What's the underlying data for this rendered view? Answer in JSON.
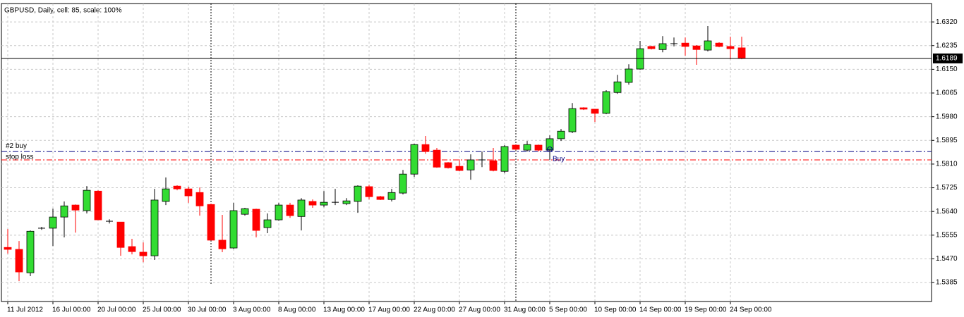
{
  "chart_data": {
    "type": "candlestick",
    "title": "GBPUSD, Daily, cell: 85, scale: 100%",
    "categories": [
      "11 Jul 2012",
      null,
      null,
      null,
      "16 Jul 00:00",
      null,
      null,
      null,
      "20 Jul 00:00",
      null,
      null,
      null,
      "25 Jul 00:00",
      null,
      null,
      null,
      "30 Jul 00:00",
      null,
      null,
      null,
      "3 Aug 00:00",
      null,
      null,
      null,
      "8 Aug 00:00",
      null,
      null,
      null,
      "13 Aug 00:00",
      null,
      null,
      null,
      "17 Aug 00:00",
      null,
      null,
      null,
      "22 Aug 00:00",
      null,
      null,
      null,
      "27 Aug 00:00",
      null,
      null,
      null,
      "31 Aug 00:00",
      null,
      null,
      null,
      "5 Sep 00:00",
      null,
      null,
      null,
      "10 Sep 00:00",
      null,
      null,
      null,
      "14 Sep 00:00",
      null,
      null,
      null,
      "19 Sep 00:00",
      null,
      null,
      null,
      "24 Sep 00:00",
      null
    ],
    "open": [
      1.5511,
      1.5504,
      1.542,
      1.558,
      1.558,
      1.562,
      1.5663,
      1.5643,
      1.5713,
      1.5605,
      1.5602,
      1.5514,
      1.5494,
      1.5481,
      1.5676,
      1.5731,
      1.5721,
      1.5708,
      1.5665,
      1.5537,
      1.5509,
      1.563,
      1.5648,
      1.5582,
      1.561,
      1.5663,
      1.5622,
      1.5676,
      1.5663,
      1.5673,
      1.5668,
      1.5676,
      1.5729,
      1.5693,
      1.5683,
      1.5706,
      1.5774,
      1.588,
      1.586,
      1.5815,
      1.5802,
      1.5789,
      1.5825,
      1.5822,
      1.5784,
      1.5878,
      1.586,
      1.5878,
      1.586,
      1.5901,
      1.5926,
      1.6012,
      1.6007,
      1.5992,
      1.6067,
      1.6103,
      1.6151,
      1.6232,
      1.6221,
      1.6242,
      1.6244,
      1.6234,
      1.6219,
      1.6244,
      1.6232,
      1.6227
    ],
    "high": [
      1.5577,
      1.5534,
      1.5572,
      1.5585,
      1.565,
      1.5676,
      1.5665,
      1.5731,
      1.5716,
      1.5612,
      1.5602,
      1.5542,
      1.5529,
      1.5721,
      1.5762,
      1.5734,
      1.5729,
      1.5726,
      1.5668,
      1.5628,
      1.5671,
      1.5653,
      1.565,
      1.5633,
      1.5671,
      1.5671,
      1.5688,
      1.5683,
      1.5713,
      1.5721,
      1.5688,
      1.5734,
      1.5736,
      1.5696,
      1.5721,
      1.5789,
      1.5883,
      1.5911,
      1.5868,
      1.5817,
      1.5827,
      1.5845,
      1.5855,
      1.5868,
      1.5878,
      1.588,
      1.5893,
      1.588,
      1.5913,
      1.5936,
      1.6029,
      1.6014,
      1.6007,
      1.6075,
      1.613,
      1.6168,
      1.6252,
      1.6234,
      1.6269,
      1.6264,
      1.6264,
      1.6237,
      1.6305,
      1.6247,
      1.6267,
      1.6267
    ],
    "low": [
      1.5489,
      1.539,
      1.5408,
      1.5574,
      1.5516,
      1.5547,
      1.5564,
      1.5633,
      1.561,
      1.5597,
      1.5481,
      1.5486,
      1.5458,
      1.5466,
      1.5663,
      1.5716,
      1.5671,
      1.5625,
      1.5537,
      1.5494,
      1.5506,
      1.5625,
      1.5547,
      1.5562,
      1.5607,
      1.5617,
      1.5572,
      1.5653,
      1.5655,
      1.5663,
      1.5663,
      1.5635,
      1.5683,
      1.5681,
      1.5676,
      1.5701,
      1.5764,
      1.5847,
      1.5797,
      1.5794,
      1.5784,
      1.5754,
      1.5799,
      1.5784,
      1.5777,
      1.586,
      1.5855,
      1.5855,
      1.5825,
      1.5893,
      1.5921,
      1.6004,
      1.5961,
      1.5989,
      1.6062,
      1.6095,
      1.6148,
      1.6221,
      1.6211,
      1.6232,
      1.6199,
      1.6166,
      1.6214,
      1.6229,
      1.6186,
      1.6186
    ],
    "close": [
      1.5504,
      1.5423,
      1.5569,
      1.558,
      1.562,
      1.566,
      1.5645,
      1.5716,
      1.561,
      1.5605,
      1.5511,
      1.5496,
      1.5481,
      1.5681,
      1.5721,
      1.5721,
      1.5696,
      1.566,
      1.5537,
      1.5506,
      1.5643,
      1.565,
      1.5572,
      1.561,
      1.5663,
      1.5625,
      1.5681,
      1.5663,
      1.5673,
      1.5673,
      1.5678,
      1.5731,
      1.5693,
      1.5683,
      1.5708,
      1.5774,
      1.588,
      1.5855,
      1.5799,
      1.5797,
      1.5787,
      1.5825,
      1.5825,
      1.5787,
      1.5873,
      1.5863,
      1.588,
      1.586,
      1.5901,
      1.5928,
      1.6009,
      1.6007,
      1.5992,
      1.607,
      1.6105,
      1.6151,
      1.6224,
      1.6224,
      1.6242,
      1.6242,
      1.6232,
      1.6221,
      1.6252,
      1.6232,
      1.6224,
      1.6189
    ],
    "up_color": "#32dc32",
    "down_color": "#ff0000",
    "ylim": [
      1.5317,
      1.6386
    ],
    "yticks": [
      {
        "value": 1.632,
        "label": "1.6320"
      },
      1.6235,
      {
        "value": 1.615,
        "label": "1.6150"
      },
      1.6065,
      {
        "value": 1.598,
        "label": "1.5980"
      },
      1.5895,
      {
        "value": 1.581,
        "label": "1.5810"
      },
      1.5725,
      {
        "value": 1.564,
        "label": "1.5640"
      },
      1.5555,
      {
        "value": 1.547,
        "label": "1.5470"
      },
      1.5385
    ],
    "grid": true,
    "current_price": 1.6189,
    "levels": [
      {
        "label": "#2 buy",
        "value": 1.5855,
        "color": "#000080"
      },
      {
        "label": "stop loss",
        "value": 1.5825,
        "color": "#ff0000"
      }
    ],
    "annotations": [
      {
        "label": "Buy",
        "x": "5 Sep 00:00",
        "value": 1.5863,
        "color": "#000080"
      }
    ]
  }
}
